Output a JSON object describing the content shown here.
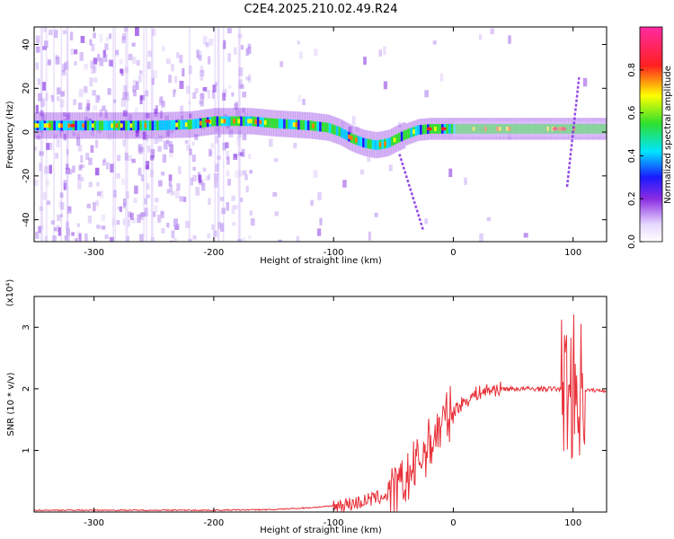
{
  "title": "C2E4.2025.210.02.49.R24",
  "chart_data": [
    {
      "type": "heatmap",
      "xlabel": "Height of straight line (km)",
      "ylabel": "Frequency (Hz)",
      "xlim": [
        -350,
        128
      ],
      "ylim": [
        -50,
        48
      ],
      "xticks": [
        -300,
        -200,
        -100,
        0,
        100
      ],
      "yticks": [
        -40,
        -20,
        0,
        20,
        40
      ],
      "colorbar": {
        "label": "Normalized spectral amplitude",
        "range": [
          0,
          1
        ],
        "ticks": [
          "0.0",
          "0.2",
          "0.4",
          "0.6",
          "0.8"
        ]
      },
      "ridge": {
        "x": [
          -350,
          -300,
          -250,
          -220,
          -200,
          -170,
          -150,
          -120,
          -105,
          -95,
          -85,
          -75,
          -65,
          -55,
          -48,
          -40,
          -30,
          -20,
          0,
          20,
          50,
          80,
          100,
          128
        ],
        "freq": [
          3,
          3,
          3,
          3.5,
          5,
          5,
          4,
          3,
          2,
          0,
          -3,
          -5,
          -6,
          -5,
          -3,
          -1,
          1,
          1.5,
          1.5,
          1.5,
          1.5,
          1.5,
          1.5,
          1.5
        ]
      },
      "features": [
        {
          "x_range": [
            -45,
            -25
          ],
          "freq_range": [
            -10,
            -45
          ]
        },
        {
          "x_range": [
            95,
            105
          ],
          "freq_range": [
            -25,
            25
          ]
        }
      ]
    },
    {
      "type": "line",
      "xlabel": "Height of straight line (km)",
      "ylabel": "SNR (10 * v/v)",
      "multiplier_label": "(x10⁴)",
      "xlim": [
        -350,
        128
      ],
      "ylim": [
        0,
        3.5
      ],
      "xticks": [
        -300,
        -200,
        -100,
        0,
        100
      ],
      "yticks": [
        1,
        2,
        3
      ],
      "series": [
        {
          "color": "#e8313a",
          "x": [
            -350,
            -300,
            -250,
            -200,
            -150,
            -120,
            -100,
            -80,
            -70,
            -60,
            -50,
            -45,
            -40,
            -35,
            -30,
            -25,
            -20,
            -15,
            -10,
            -5,
            0,
            10,
            20,
            30,
            40,
            60,
            80,
            95,
            100,
            105,
            110,
            128
          ],
          "y": [
            0.03,
            0.03,
            0.03,
            0.03,
            0.04,
            0.07,
            0.1,
            0.15,
            0.2,
            0.25,
            0.3,
            0.38,
            0.5,
            0.65,
            0.8,
            0.95,
            1.1,
            1.25,
            1.4,
            1.55,
            1.65,
            1.8,
            1.93,
            1.98,
            2.0,
            2.0,
            2.0,
            2.0,
            2.05,
            2.0,
            1.98,
            1.97
          ]
        }
      ]
    }
  ]
}
